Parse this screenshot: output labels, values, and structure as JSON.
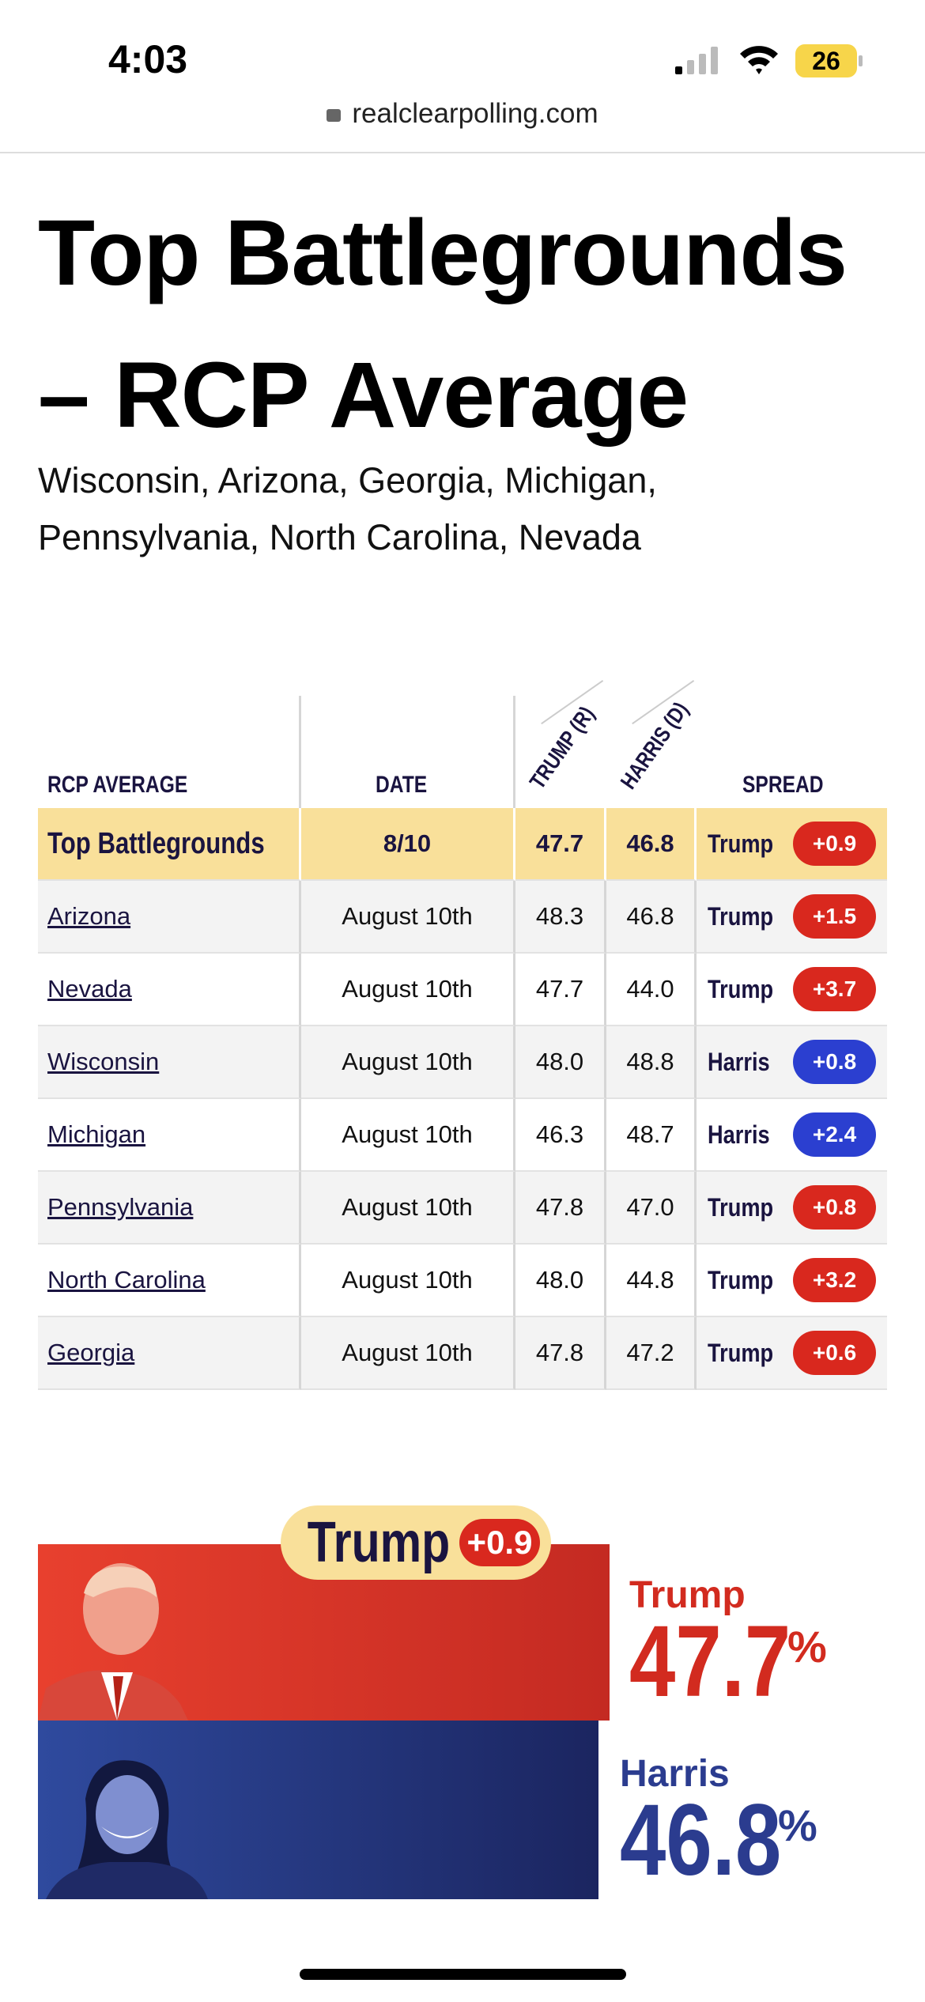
{
  "status_bar": {
    "time": "4:03",
    "battery": "26"
  },
  "browser": {
    "url": "realclearpolling.com"
  },
  "header": {
    "title": "Top Battlegrounds – RCP Average",
    "subtitle": "Wisconsin, Arizona, Georgia, Michigan, Pennsylvania, North Carolina, Nevada"
  },
  "table": {
    "columns": [
      "RCP AVERAGE",
      "DATE",
      "TRUMP (R)",
      "HARRIS (D)",
      "SPREAD"
    ],
    "summary": [
      "Top Battlegrounds",
      "8/10",
      "47.7",
      "46.8",
      "Trump",
      "+0.9"
    ],
    "rows": [
      [
        "Arizona",
        "August 10th",
        "48.3",
        "46.8",
        "Trump",
        "+1.5"
      ],
      [
        "Nevada",
        "August 10th",
        "47.7",
        "44.0",
        "Trump",
        "+3.7"
      ],
      [
        "Wisconsin",
        "August 10th",
        "48.0",
        "48.8",
        "Harris",
        "+0.8"
      ],
      [
        "Michigan",
        "August 10th",
        "46.3",
        "48.7",
        "Harris",
        "+2.4"
      ],
      [
        "Pennsylvania",
        "August 10th",
        "47.8",
        "47.0",
        "Trump",
        "+0.8"
      ],
      [
        "North Carolina",
        "August 10th",
        "48.0",
        "44.8",
        "Trump",
        "+3.2"
      ],
      [
        "Georgia",
        "August 10th",
        "47.8",
        "47.2",
        "Trump",
        "+0.6"
      ]
    ]
  },
  "result": {
    "leader": "Trump",
    "spread": "+0.9",
    "candidates": [
      {
        "name": "Trump",
        "value": "47.7",
        "unit": "%"
      },
      {
        "name": "Harris",
        "value": "46.8",
        "unit": "%"
      }
    ]
  }
}
